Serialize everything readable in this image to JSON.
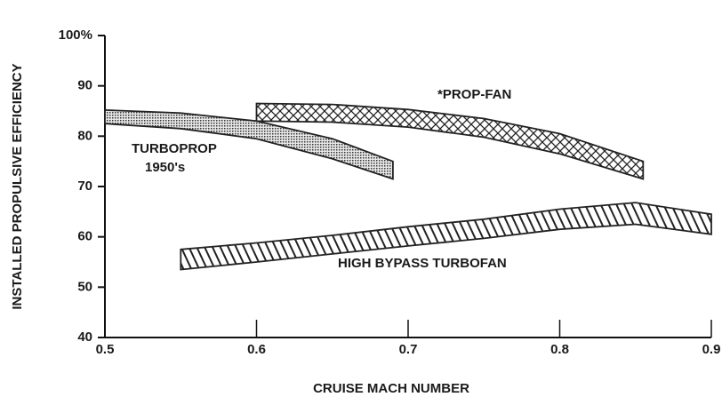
{
  "chart_data": {
    "type": "band",
    "xlabel": "CRUISE MACH NUMBER",
    "ylabel": "INSTALLED PROPULSIVE EFFICIENCY",
    "xlim": [
      0.5,
      0.9
    ],
    "xticks": [
      0.5,
      0.6,
      0.7,
      0.8,
      0.9
    ],
    "ylim": [
      40,
      100
    ],
    "yticks": [
      40,
      50,
      60,
      70,
      80,
      90,
      {
        "value": 100,
        "label": "100%"
      }
    ],
    "annotations": [
      "*PROP-FAN",
      "TURBOPROP",
      "1950's",
      "HIGH BYPASS TURBOFAN"
    ],
    "series": [
      {
        "pattern": "dots",
        "color": "#222222",
        "x": [
          0.5,
          0.55,
          0.6,
          0.65,
          0.69
        ],
        "upper": [
          85.2,
          84.6,
          83,
          79.5,
          75
        ],
        "lower": [
          82.5,
          81.5,
          79.5,
          75.5,
          71.5
        ]
      },
      {
        "pattern": "crosshatch",
        "color": "#222222",
        "x": [
          0.6,
          0.65,
          0.7,
          0.75,
          0.8,
          0.855
        ],
        "upper": [
          86.5,
          86.3,
          85.3,
          83.5,
          80.5,
          75
        ],
        "lower": [
          83,
          82.8,
          81.8,
          79.8,
          76.5,
          71.5
        ]
      },
      {
        "pattern": "hatch",
        "color": "#222222",
        "x": [
          0.55,
          0.6,
          0.65,
          0.7,
          0.75,
          0.8,
          0.85,
          0.9
        ],
        "upper": [
          57.5,
          58.8,
          60.3,
          62,
          63.5,
          65.5,
          66.8,
          64.5
        ],
        "lower": [
          53.5,
          55,
          56.6,
          58.2,
          59.7,
          61.5,
          62.5,
          60.5
        ]
      }
    ]
  }
}
